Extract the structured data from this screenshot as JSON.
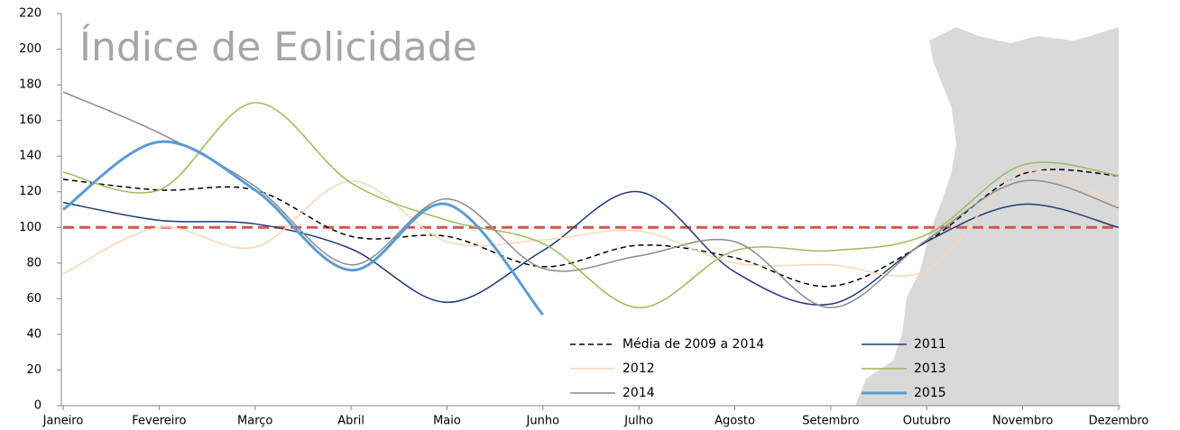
{
  "chart_data": {
    "type": "line",
    "title": "Índice de Eolicidade",
    "categories": [
      "Janeiro",
      "Fevereiro",
      "Março",
      "Abril",
      "Maio",
      "Junho",
      "Julho",
      "Agosto",
      "Setembro",
      "Outubro",
      "Novembro",
      "Dezembro"
    ],
    "ylim": [
      0,
      220
    ],
    "yticks": [
      0,
      20,
      40,
      60,
      80,
      100,
      120,
      140,
      160,
      180,
      200,
      220
    ],
    "reference_line": {
      "value": 100,
      "color": "#d9534f"
    },
    "smooth": true,
    "series": [
      {
        "name": "Média de 2009 a 2014",
        "color": "#000000",
        "dashed": true,
        "width": 1.5,
        "values": [
          127,
          121,
          121,
          95,
          95,
          78,
          90,
          83,
          67,
          92,
          130,
          129
        ]
      },
      {
        "name": "2011",
        "color": "#1f3a7a",
        "width": 1.5,
        "values": [
          114,
          104,
          102,
          88,
          58,
          87,
          120,
          75,
          57,
          92,
          113,
          100
        ]
      },
      {
        "name": "2012",
        "color": "#fbd5b5",
        "width": 1.5,
        "values": [
          74,
          100,
          89,
          126,
          92,
          93,
          98,
          80,
          79,
          76,
          131,
          112
        ]
      },
      {
        "name": "2013",
        "color": "#9bbb59",
        "width": 1.5,
        "values": [
          131,
          121,
          170,
          125,
          104,
          91,
          55,
          87,
          87,
          96,
          135,
          129
        ]
      },
      {
        "name": "2014",
        "color": "#8c8c8c",
        "width": 1.5,
        "values": [
          176,
          153,
          123,
          79,
          116,
          77,
          84,
          92,
          55,
          93,
          126,
          111
        ]
      },
      {
        "name": "2015",
        "color": "#5b9bd5",
        "width": 3,
        "values": [
          110,
          148,
          121,
          76,
          113,
          51,
          null,
          null,
          null,
          null,
          null,
          null
        ]
      }
    ]
  }
}
